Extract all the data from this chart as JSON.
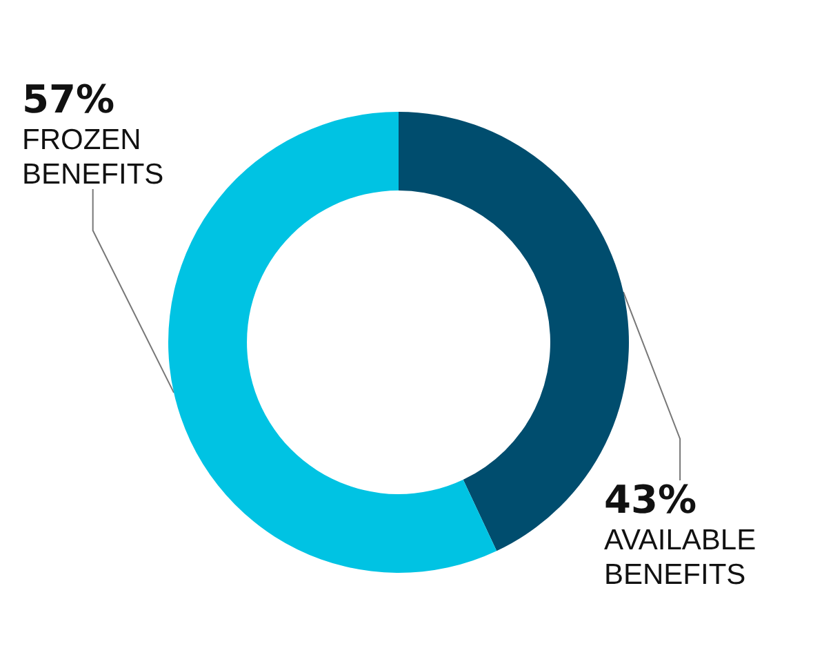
{
  "chart_data": {
    "type": "donut",
    "categories": [
      "AVAILABLE BENEFITS",
      "FROZEN BENEFITS"
    ],
    "values": [
      43,
      57
    ],
    "value_labels": [
      "43%",
      "57%"
    ],
    "colors": [
      "#004d6e",
      "#00c3e3"
    ],
    "legend": false
  }
}
